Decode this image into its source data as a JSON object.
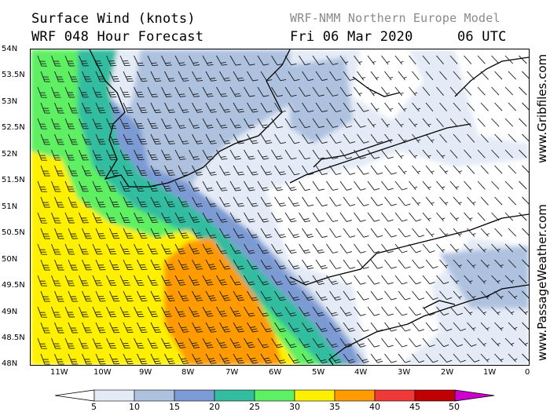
{
  "header": {
    "title_line1": "Surface Wind (knots)",
    "title_line2": "WRF 048 Hour Forecast",
    "model": "WRF-NMM Northern Europe Model",
    "date": "Fri 06 Mar 2020",
    "time": "06 UTC"
  },
  "axes": {
    "lat_labels": [
      "54N",
      "53.5N",
      "53N",
      "52.5N",
      "52N",
      "51.5N",
      "51N",
      "50.5N",
      "50N",
      "49.5N",
      "49N",
      "48.5N",
      "48N"
    ],
    "lon_labels": [
      "11W",
      "10W",
      "9W",
      "8W",
      "7W",
      "6W",
      "5W",
      "4W",
      "3W",
      "2W",
      "1W",
      "0"
    ]
  },
  "side_text": {
    "top": "www.Gribfiles.com",
    "bottom": "www.PassageWeather.com"
  },
  "legend": {
    "unit": "knots",
    "labels": [
      "5",
      "10",
      "15",
      "20",
      "25",
      "30",
      "35",
      "40",
      "45",
      "50"
    ],
    "colors": [
      "#e4ebf6",
      "#aec2e0",
      "#7b9bd4",
      "#33bda0",
      "#5fef64",
      "#fff000",
      "#ff9a00",
      "#f03a3a",
      "#c00000",
      "#ce00ce"
    ]
  },
  "map_colors": {
    "land_outline": "#000000",
    "barb": "#1a1a1a"
  }
}
